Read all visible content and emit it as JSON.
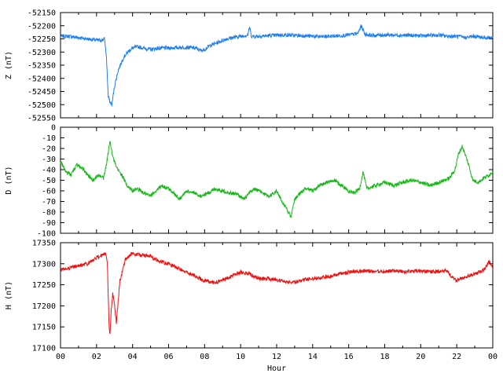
{
  "chart_data": [
    {
      "type": "line",
      "ylabel": "Z (nT)",
      "ylim": [
        -52550,
        -52150
      ],
      "yticks": [
        -52150,
        -52200,
        -52250,
        -52300,
        -52350,
        -52400,
        -52450,
        -52500,
        -52550
      ],
      "xlim": [
        0,
        24
      ],
      "grid": false,
      "series": [
        {
          "color": "#1e7ff0",
          "x": [
            0,
            0.5,
            1,
            1.5,
            2,
            2.3,
            2.45,
            2.55,
            2.65,
            2.75,
            2.85,
            3.0,
            3.2,
            3.5,
            3.8,
            4.0,
            4.3,
            4.6,
            5.0,
            5.5,
            6.0,
            6.5,
            7.0,
            7.5,
            7.8,
            8.0,
            8.3,
            8.8,
            9.2,
            9.6,
            10.0,
            10.4,
            10.5,
            10.6,
            11.0,
            11.5,
            12.0,
            12.5,
            13.0,
            13.5,
            14.0,
            14.5,
            15.0,
            15.5,
            16.0,
            16.5,
            16.7,
            16.9,
            17.3,
            18.0,
            19.0,
            20.0,
            21.0,
            21.5,
            22.0,
            22.5,
            23.0,
            23.5,
            24.0
          ],
          "values": [
            -52240,
            -52240,
            -52245,
            -52250,
            -52255,
            -52255,
            -52250,
            -52320,
            -52470,
            -52490,
            -52500,
            -52430,
            -52370,
            -52320,
            -52295,
            -52285,
            -52280,
            -52285,
            -52290,
            -52285,
            -52285,
            -52283,
            -52282,
            -52285,
            -52295,
            -52290,
            -52275,
            -52262,
            -52250,
            -52245,
            -52240,
            -52235,
            -52205,
            -52240,
            -52240,
            -52238,
            -52236,
            -52235,
            -52237,
            -52238,
            -52240,
            -52242,
            -52240,
            -52238,
            -52235,
            -52230,
            -52200,
            -52232,
            -52237,
            -52235,
            -52236,
            -52238,
            -52236,
            -52240,
            -52240,
            -52245,
            -52240,
            -52245,
            -52245
          ]
        }
      ]
    },
    {
      "type": "line",
      "ylabel": "D (nT)",
      "ylim": [
        -100,
        0
      ],
      "yticks": [
        0,
        -10,
        -20,
        -30,
        -40,
        -50,
        -60,
        -70,
        -80,
        -90,
        -100
      ],
      "xlim": [
        0,
        24
      ],
      "grid": false,
      "series": [
        {
          "color": "#18b818",
          "x": [
            0,
            0.3,
            0.6,
            0.9,
            1.2,
            1.5,
            1.8,
            2.1,
            2.4,
            2.6,
            2.75,
            2.9,
            3.1,
            3.4,
            3.7,
            4.0,
            4.3,
            4.6,
            5.0,
            5.3,
            5.6,
            6.0,
            6.3,
            6.6,
            7.0,
            7.4,
            7.8,
            8.2,
            8.6,
            9.0,
            9.4,
            9.8,
            10.2,
            10.5,
            10.8,
            11.2,
            11.6,
            12.0,
            12.3,
            12.6,
            12.8,
            13.0,
            13.3,
            13.6,
            14.0,
            14.4,
            14.8,
            15.2,
            15.6,
            16.0,
            16.3,
            16.6,
            16.8,
            17.0,
            17.5,
            18.0,
            18.5,
            19.0,
            19.5,
            20.0,
            20.5,
            21.0,
            21.3,
            21.6,
            21.9,
            22.1,
            22.3,
            22.6,
            22.9,
            23.2,
            23.5,
            23.8,
            24.0
          ],
          "values": [
            -32,
            -42,
            -45,
            -35,
            -38,
            -45,
            -50,
            -45,
            -48,
            -30,
            -12,
            -28,
            -38,
            -45,
            -55,
            -60,
            -58,
            -62,
            -65,
            -60,
            -55,
            -58,
            -62,
            -68,
            -60,
            -62,
            -65,
            -62,
            -58,
            -60,
            -62,
            -63,
            -68,
            -62,
            -58,
            -62,
            -65,
            -60,
            -70,
            -78,
            -85,
            -68,
            -62,
            -58,
            -60,
            -55,
            -52,
            -50,
            -55,
            -60,
            -62,
            -58,
            -42,
            -58,
            -55,
            -52,
            -55,
            -52,
            -50,
            -52,
            -55,
            -52,
            -50,
            -48,
            -40,
            -25,
            -18,
            -32,
            -50,
            -52,
            -48,
            -45,
            -42
          ]
        }
      ]
    },
    {
      "type": "line",
      "ylabel": "H (nT)",
      "ylim": [
        17100,
        17350
      ],
      "yticks": [
        17350,
        17300,
        17250,
        17200,
        17150,
        17100
      ],
      "xlim": [
        0,
        24
      ],
      "xlabel": "Hour",
      "xticks": [
        "00",
        "02",
        "04",
        "06",
        "08",
        "10",
        "12",
        "14",
        "16",
        "18",
        "20",
        "22",
        "00"
      ],
      "grid": false,
      "series": [
        {
          "color": "#ee1111",
          "x": [
            0,
            0.5,
            1,
            1.5,
            2,
            2.3,
            2.5,
            2.6,
            2.65,
            2.7,
            2.75,
            2.8,
            2.9,
            3.0,
            3.1,
            3.3,
            3.6,
            4.0,
            4.5,
            5.0,
            5.5,
            6.0,
            6.5,
            7.0,
            7.5,
            8.0,
            8.5,
            9.0,
            9.5,
            10.0,
            10.5,
            11.0,
            11.5,
            12.0,
            12.5,
            13.0,
            13.5,
            14.0,
            14.5,
            15.0,
            15.5,
            16.0,
            16.5,
            17.0,
            17.5,
            18.0,
            18.5,
            19.0,
            19.5,
            20.0,
            20.5,
            21.0,
            21.4,
            21.7,
            22.0,
            22.5,
            23.0,
            23.5,
            23.8,
            24.0
          ],
          "values": [
            17285,
            17290,
            17295,
            17300,
            17315,
            17320,
            17325,
            17300,
            17220,
            17150,
            17130,
            17180,
            17230,
            17200,
            17160,
            17260,
            17310,
            17325,
            17320,
            17318,
            17305,
            17300,
            17290,
            17280,
            17270,
            17260,
            17255,
            17262,
            17270,
            17280,
            17275,
            17265,
            17265,
            17262,
            17258,
            17255,
            17262,
            17265,
            17268,
            17270,
            17275,
            17280,
            17282,
            17283,
            17282,
            17282,
            17283,
            17281,
            17282,
            17282,
            17281,
            17282,
            17285,
            17270,
            17260,
            17270,
            17275,
            17285,
            17305,
            17290
          ]
        }
      ]
    }
  ]
}
